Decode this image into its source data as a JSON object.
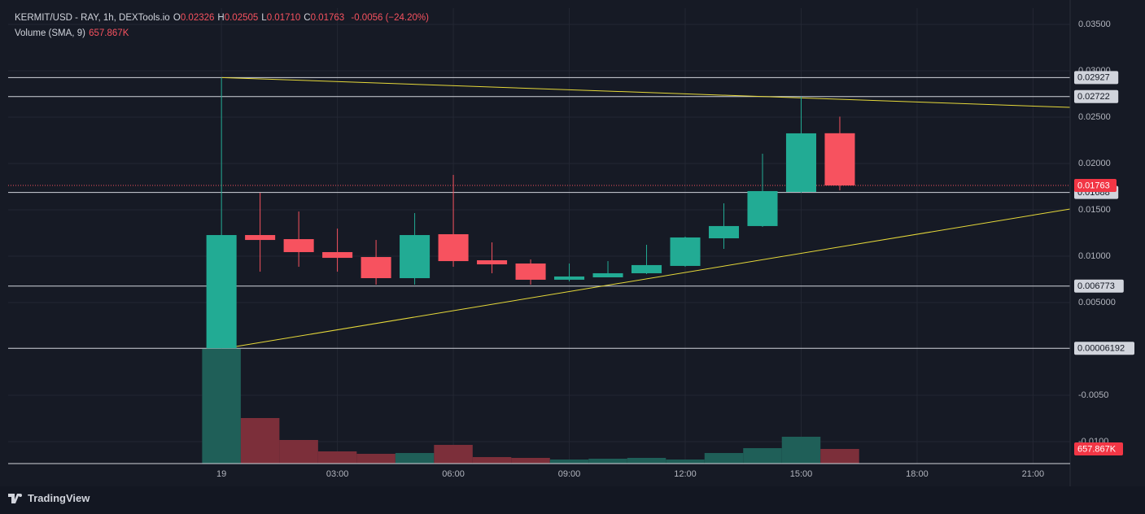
{
  "chart_data": {
    "type": "candlestick",
    "title": "KERMIT/USD - RAY, 1h, DEXTools.io",
    "legend_items": [
      {
        "label": "O",
        "value": "0.02326"
      },
      {
        "label": "H",
        "value": "0.02505"
      },
      {
        "label": "L",
        "value": "0.01710"
      },
      {
        "label": "C",
        "value": "0.01763"
      }
    ],
    "change": "-0.0056 (−24.20%)",
    "volume_title": "Volume (SMA, 9)",
    "volume_last_label": "657.867K",
    "x": [
      0,
      1,
      2,
      3,
      4,
      5,
      6,
      7,
      8,
      9,
      10,
      11,
      12,
      13,
      14,
      15,
      16
    ],
    "open": [
      6.192e-05,
      0.01228,
      0.01184,
      0.01044,
      0.00991,
      0.00763,
      0.01237,
      0.00956,
      0.00921,
      0.00746,
      0.00772,
      0.00816,
      0.00895,
      0.01193,
      0.01325,
      0.01693,
      0.02326
    ],
    "high": [
      0.02927,
      0.01684,
      0.01482,
      0.01298,
      0.01175,
      0.01465,
      0.01877,
      0.01149,
      0.00965,
      0.00921,
      0.00947,
      0.01123,
      0.01211,
      0.0157,
      0.02105,
      0.02722,
      0.02505
    ],
    "low": [
      6.192e-05,
      0.00833,
      0.00886,
      0.00833,
      0.00693,
      0.00693,
      0.00886,
      0.00816,
      0.00693,
      0.00728,
      0.00772,
      0.00807,
      0.00886,
      0.01079,
      0.01316,
      0.01684,
      0.0171
    ],
    "close": [
      0.01228,
      0.01175,
      0.01044,
      0.00982,
      0.00763,
      0.01228,
      0.00947,
      0.00912,
      0.00746,
      0.00781,
      0.00816,
      0.00904,
      0.01202,
      0.01325,
      0.01702,
      0.02325,
      0.01763
    ],
    "volume": [
      5153000,
      2047000,
      1060000,
      548000,
      439000,
      475000,
      841000,
      292000,
      256000,
      183000,
      219000,
      256000,
      183000,
      475000,
      694000,
      1206000,
      657867
    ],
    "up_color": "#22ab94",
    "down_color": "#f7525f",
    "volume_up_color": "#1f5f58",
    "volume_down_color": "#7c2f3a",
    "xlim": [
      -5.52,
      21.96
    ],
    "xticks": [
      {
        "value": 0,
        "label": "19"
      },
      {
        "value": 3,
        "label": "03:00"
      },
      {
        "value": 6,
        "label": "06:00"
      },
      {
        "value": 9,
        "label": "09:00"
      },
      {
        "value": 12,
        "label": "12:00"
      },
      {
        "value": 15,
        "label": "15:00"
      },
      {
        "value": 18,
        "label": "18:00"
      },
      {
        "value": 21,
        "label": "21:00"
      }
    ],
    "ylim": [
      -0.012368,
      0.036754
    ],
    "yticks": [
      {
        "value": 0.035,
        "label": "0.03500"
      },
      {
        "value": 0.03,
        "label": "0.03000"
      },
      {
        "value": 0.025,
        "label": "0.02500"
      },
      {
        "value": 0.02,
        "label": "0.02000"
      },
      {
        "value": 0.015,
        "label": "0.01500"
      },
      {
        "value": 0.01,
        "label": "0.01000"
      },
      {
        "value": 0.005,
        "label": "0.005000"
      },
      {
        "value": -0.005,
        "label": "-0.0050"
      },
      {
        "value": -0.01,
        "label": "-0.0100"
      }
    ],
    "volume_ylim": [
      0,
      20470000
    ],
    "horizontal_lines": [
      {
        "value": 0.02927,
        "label": "0.02927"
      },
      {
        "value": 0.02722,
        "label": "0.02722"
      },
      {
        "value": 0.01688,
        "label": "0.01688"
      },
      {
        "value": 0.006773,
        "label": "0.006773"
      },
      {
        "value": 6.192e-05,
        "label": "0.00006192"
      }
    ],
    "last_price": {
      "value": 0.01763,
      "label": "0.01763"
    },
    "trend_lines": [
      {
        "x": [
          0,
          21.96
        ],
        "y": [
          0.02927,
          0.02605
        ]
      },
      {
        "x": [
          0.38,
          21.96
        ],
        "y": [
          0.00026,
          0.01509
        ]
      }
    ],
    "grid": true
  },
  "footer": {
    "brand": "TradingView"
  }
}
